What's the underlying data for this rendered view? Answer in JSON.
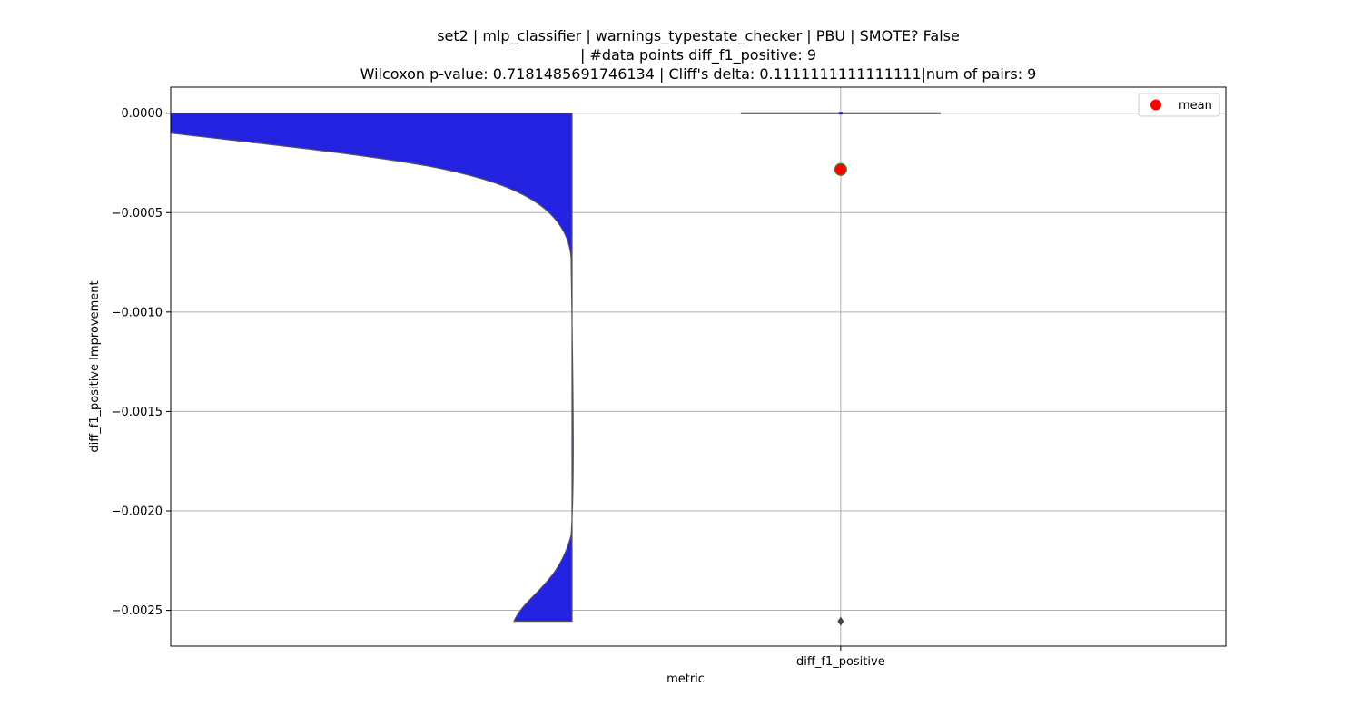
{
  "titles": {
    "line1": "set2 | mlp_classifier | warnings_typestate_checker | PBU | SMOTE? False",
    "line2": "| #data points diff_f1_positive: 9",
    "line3": "Wilcoxon p-value: 0.7181485691746134 | Cliff's delta: 0.1111111111111111|num of pairs: 9"
  },
  "colors": {
    "violin_fill": "#2222e0",
    "violin_edge": "#555555",
    "mean_marker": "#ff0000",
    "mean_marker_edge": "#3a8a3a",
    "grid": "#b0b0b0"
  },
  "chart_data": {
    "type": "violin+box",
    "title": "set2 | mlp_classifier | warnings_typestate_checker | PBU | SMOTE? False | #data points diff_f1_positive: 9 Wilcoxon p-value: 0.7181485691746134 | Cliff's delta: 0.1111111111111111|num of pairs: 9",
    "xlabel": "metric",
    "ylabel": "diff_f1_positive Improvement",
    "categories": [
      "diff_f1_positive"
    ],
    "ylim": [
      -0.00268,
      0.000131
    ],
    "yticks": [
      0.0,
      -0.0005,
      -0.001,
      -0.0015,
      -0.002,
      -0.0025
    ],
    "ytick_labels": [
      "0.0000",
      "−0.0005",
      "−0.0010",
      "−0.0015",
      "−0.0020",
      "−0.0025"
    ],
    "grid": true,
    "legend": {
      "position": "top-right",
      "entries": [
        "mean"
      ]
    },
    "series": [
      {
        "name": "diff_f1_positive",
        "n_points": 9,
        "mean": -0.000283,
        "median": 0.0,
        "q1": 0.0,
        "q3": 0.0,
        "outliers": [
          -0.002555
        ],
        "violin_min": -0.002555,
        "violin_max": 0.0
      }
    ]
  }
}
